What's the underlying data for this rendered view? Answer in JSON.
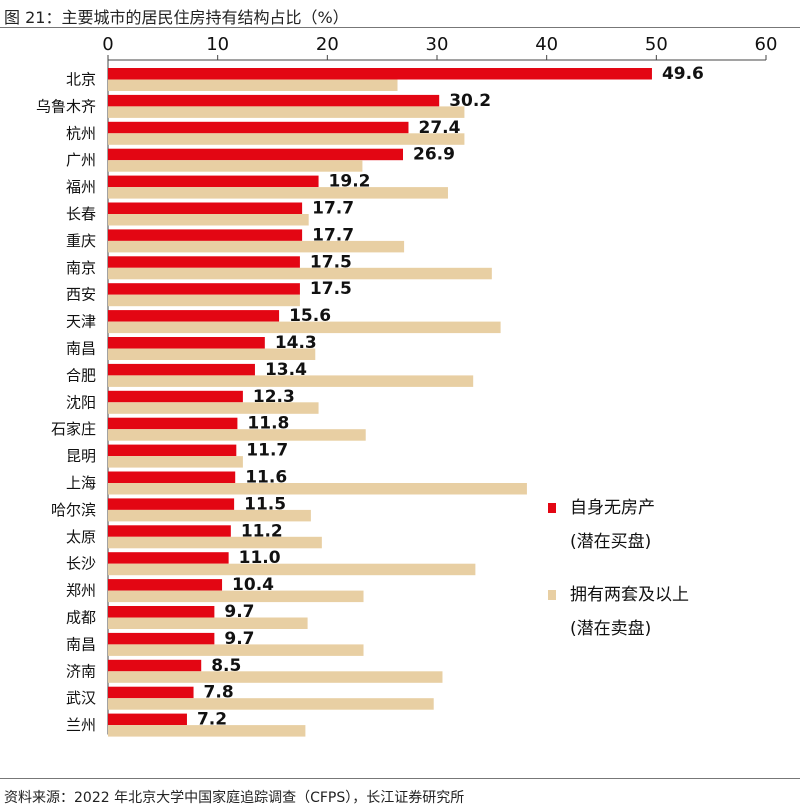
{
  "figure": {
    "title": "图 21：主要城市的居民住房持有结构占比（%）",
    "source": "资料来源：2022 年北京大学中国家庭追踪调查（CFPS），长江证券研究所"
  },
  "colors": {
    "no_house": "#e30613",
    "two_plus": "#e8cfa3",
    "axis": "#444444",
    "text": "#111111"
  },
  "legend": {
    "no_house": {
      "label": "自身无房产",
      "sublabel": "(潜在买盘)"
    },
    "two_plus": {
      "label": "拥有两套及以上",
      "sublabel": "(潜在卖盘)"
    }
  },
  "chart_data": {
    "type": "bar",
    "orientation": "horizontal",
    "title": "主要城市的居民住房持有结构占比（%）",
    "xlim": [
      0,
      60
    ],
    "ticks": [
      0,
      10,
      20,
      30,
      40,
      50,
      60
    ],
    "categories": [
      "北京",
      "乌鲁木齐",
      "杭州",
      "广州",
      "福州",
      "长春",
      "重庆",
      "南京",
      "西安",
      "天津",
      "南昌",
      "合肥",
      "沈阳",
      "石家庄",
      "昆明",
      "上海",
      "哈尔滨",
      "太原",
      "长沙",
      "郑州",
      "成都",
      "南昌",
      "济南",
      "武汉",
      "兰州"
    ],
    "series": [
      {
        "name": "自身无房产",
        "color": "#e30613",
        "values": [
          49.6,
          30.2,
          27.4,
          26.9,
          19.2,
          17.7,
          17.7,
          17.5,
          17.5,
          15.6,
          14.3,
          13.4,
          12.3,
          11.8,
          11.7,
          11.6,
          11.5,
          11.2,
          11.0,
          10.4,
          9.7,
          9.7,
          8.5,
          7.8,
          7.2
        ],
        "labels": [
          "49.6",
          "30.2",
          "27.4",
          "26.9",
          "19.2",
          "17.7",
          "17.7",
          "17.5",
          "17.5",
          "15.6",
          "14.3",
          "13.4",
          "12.3",
          "11.8",
          "11.7",
          "11.6",
          "11.5",
          "11.2",
          "11.0",
          "10.4",
          "9.7",
          "9.7",
          "8.5",
          "7.8",
          "7.2"
        ]
      },
      {
        "name": "拥有两套及以上",
        "color": "#e8cfa3",
        "values": [
          26.4,
          32.5,
          32.5,
          23.2,
          31.0,
          18.3,
          27.0,
          35.0,
          17.5,
          35.8,
          18.9,
          33.3,
          19.2,
          23.5,
          12.3,
          38.2,
          18.5,
          19.5,
          33.5,
          23.3,
          18.2,
          23.3,
          30.5,
          29.7,
          18.0
        ]
      }
    ],
    "grid": false,
    "legend_position": "right"
  }
}
